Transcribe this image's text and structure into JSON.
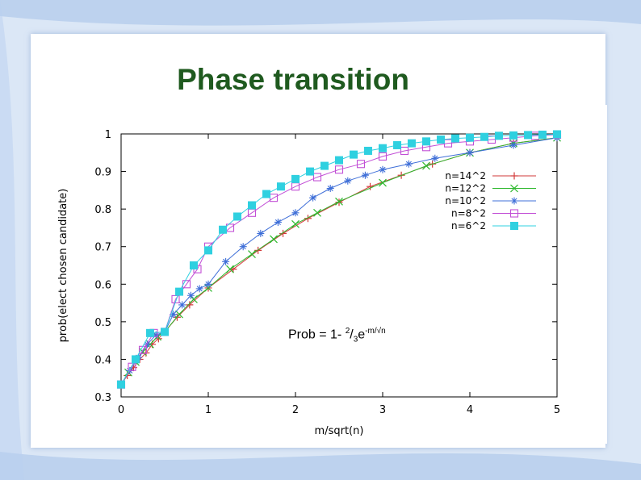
{
  "slide": {
    "title": "Phase transition"
  },
  "formula": {
    "lhs": "Prob = 1- ",
    "num": "2",
    "slash": "/",
    "den": "3",
    "e": "e",
    "exp": "-m/√n"
  },
  "colors": {
    "title": "#1f5a1f",
    "background": "#dbe7f6"
  },
  "chart_data": {
    "type": "line",
    "title": "",
    "xlabel": "m/sqrt(n)",
    "ylabel": "prob(elect chosen candidate)",
    "xlim": [
      0,
      5
    ],
    "ylim": [
      0.3,
      1
    ],
    "xticks": [
      0,
      1,
      2,
      3,
      4,
      5
    ],
    "yticks": [
      0.3,
      0.4,
      0.5,
      0.6,
      0.7,
      0.8,
      0.9,
      1
    ],
    "ytick_labels": [
      "0.3",
      "0.4",
      "0.5",
      "0.6",
      "0.7",
      "0.8",
      "0.9",
      "1"
    ],
    "grid": false,
    "legend_position": "top-right",
    "series": [
      {
        "name": "n=14^2",
        "color": "#d23a3a",
        "marker": "plus",
        "x": [
          0,
          0.071,
          0.143,
          0.214,
          0.286,
          0.357,
          0.429,
          0.5,
          0.643,
          0.786,
          1.0,
          1.286,
          1.571,
          1.857,
          2.143,
          2.5,
          2.857,
          3.214,
          3.571,
          4.0,
          4.5,
          5.0
        ],
        "y": [
          0.333,
          0.357,
          0.378,
          0.4,
          0.417,
          0.44,
          0.455,
          0.473,
          0.512,
          0.545,
          0.59,
          0.64,
          0.69,
          0.735,
          0.775,
          0.818,
          0.86,
          0.89,
          0.92,
          0.95,
          0.975,
          0.99
        ]
      },
      {
        "name": "n=12^2",
        "color": "#2eb82e",
        "marker": "cross",
        "x": [
          0,
          0.083,
          0.167,
          0.25,
          0.333,
          0.417,
          0.5,
          0.667,
          0.833,
          1.0,
          1.25,
          1.5,
          1.75,
          2.0,
          2.25,
          2.5,
          3.0,
          3.5,
          4.0,
          4.5,
          5.0
        ],
        "y": [
          0.333,
          0.365,
          0.393,
          0.42,
          0.44,
          0.46,
          0.473,
          0.52,
          0.56,
          0.59,
          0.64,
          0.68,
          0.72,
          0.76,
          0.79,
          0.82,
          0.87,
          0.915,
          0.95,
          0.975,
          0.99
        ]
      },
      {
        "name": "n=10^2",
        "color": "#3f6fd8",
        "marker": "star",
        "x": [
          0,
          0.1,
          0.2,
          0.3,
          0.4,
          0.5,
          0.6,
          0.7,
          0.8,
          0.9,
          1.0,
          1.2,
          1.4,
          1.6,
          1.8,
          2.0,
          2.2,
          2.4,
          2.6,
          2.8,
          3.0,
          3.3,
          3.6,
          4.0,
          4.5,
          5.0
        ],
        "y": [
          0.333,
          0.37,
          0.405,
          0.44,
          0.465,
          0.473,
          0.52,
          0.545,
          0.57,
          0.588,
          0.6,
          0.66,
          0.7,
          0.735,
          0.765,
          0.79,
          0.83,
          0.855,
          0.875,
          0.89,
          0.905,
          0.92,
          0.935,
          0.95,
          0.97,
          0.99
        ]
      },
      {
        "name": "n=8^2",
        "color": "#c24fd6",
        "marker": "square-open",
        "x": [
          0,
          0.125,
          0.25,
          0.375,
          0.5,
          0.625,
          0.75,
          0.875,
          1.0,
          1.25,
          1.5,
          1.75,
          2.0,
          2.25,
          2.5,
          2.75,
          3.0,
          3.25,
          3.5,
          3.75,
          4.0,
          4.25,
          4.5,
          4.75,
          5.0
        ],
        "y": [
          0.333,
          0.38,
          0.425,
          0.47,
          0.473,
          0.56,
          0.6,
          0.64,
          0.7,
          0.75,
          0.79,
          0.83,
          0.86,
          0.885,
          0.905,
          0.92,
          0.94,
          0.955,
          0.965,
          0.975,
          0.98,
          0.985,
          0.99,
          0.995,
          0.998
        ]
      },
      {
        "name": "n=6^2",
        "color": "#2fd0e0",
        "marker": "square-filled",
        "x": [
          0,
          0.167,
          0.333,
          0.5,
          0.667,
          0.833,
          1.0,
          1.167,
          1.333,
          1.5,
          1.667,
          1.833,
          2.0,
          2.167,
          2.333,
          2.5,
          2.667,
          2.833,
          3.0,
          3.167,
          3.333,
          3.5,
          3.667,
          3.833,
          4.0,
          4.167,
          4.333,
          4.5,
          4.667,
          4.833,
          5.0
        ],
        "y": [
          0.333,
          0.4,
          0.47,
          0.473,
          0.58,
          0.65,
          0.69,
          0.745,
          0.78,
          0.81,
          0.84,
          0.86,
          0.88,
          0.9,
          0.915,
          0.93,
          0.945,
          0.955,
          0.962,
          0.97,
          0.975,
          0.98,
          0.985,
          0.988,
          0.99,
          0.992,
          0.995,
          0.996,
          0.997,
          0.998,
          0.999
        ]
      }
    ]
  }
}
